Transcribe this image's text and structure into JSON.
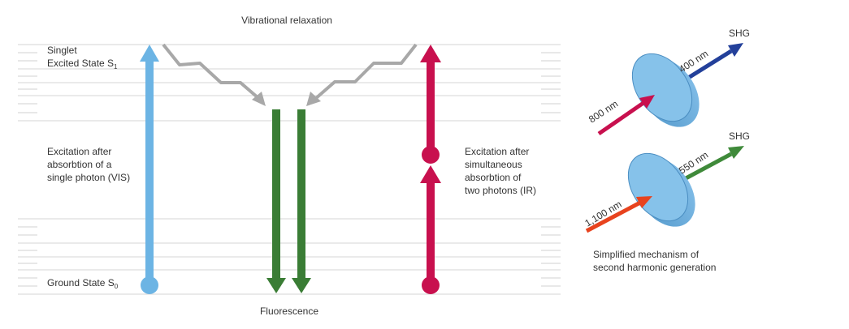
{
  "top_label": "Vibrational relaxation",
  "bottom_label": "Fluorescence",
  "excited_state": {
    "line1": "Singlet",
    "line2": "Excited State S",
    "sub": "1"
  },
  "ground_state": {
    "text": "Ground State S",
    "sub": "0"
  },
  "single_photon": {
    "lines": [
      "Excitation after",
      "absorbtion of a",
      "single photon (VIS)"
    ]
  },
  "two_photon": {
    "lines": [
      "Excitation after",
      "simultaneous",
      "absorbtion of",
      "two photons (IR)"
    ]
  },
  "shg_top": {
    "input": "800 nm",
    "output": "400 nm",
    "label": "SHG"
  },
  "shg_bottom": {
    "input": "1,100 nm",
    "output": "550 nm",
    "label": "SHG"
  },
  "caption": {
    "lines": [
      "Simplified mechanism of",
      "second harmonic generation"
    ]
  },
  "colors": {
    "vis_blue": "#6cb4e4",
    "ir_red": "#c8104e",
    "fluorescence_green": "#3a7d35",
    "relaxation_gray": "#a8a8a8",
    "shg_blue": "#23409a",
    "shg_green": "#3f8a3a",
    "input_red": "#e8431e",
    "crystal_fill": "#86c2ea"
  }
}
